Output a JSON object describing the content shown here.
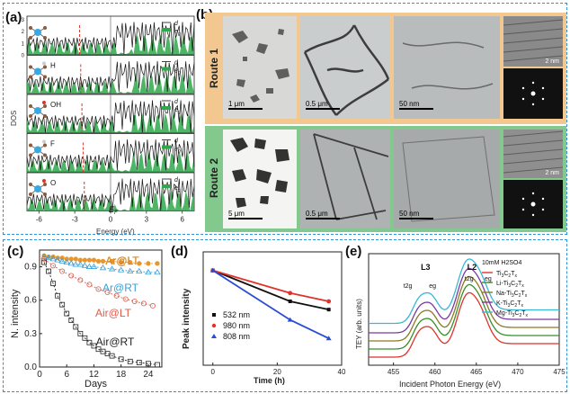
{
  "panel_a": {
    "label": "(a)",
    "y_label": "DOS",
    "x_label": "Energy (eV)",
    "x_ticks": [
      "-6",
      "-3",
      "0",
      "3",
      "6"
    ],
    "y_ticks": [
      "0",
      "1",
      "2",
      "3"
    ],
    "fermi_label": "E",
    "fermi_sub": "F",
    "rows": [
      {
        "group": "",
        "legend_d": "d",
        "legend_eg": "e",
        "legend_eg_sub": "g"
      },
      {
        "group": "H",
        "legend_d": "d",
        "legend_eg": "e",
        "legend_eg_sub": "g"
      },
      {
        "group": "OH",
        "legend_d": "d",
        "legend_eg": "e",
        "legend_eg_sub": "g"
      },
      {
        "group": "F",
        "legend_d": "d",
        "legend_eg": "e",
        "legend_eg_sub": "g"
      },
      {
        "group": "O",
        "legend_d": "d",
        "legend_eg": "e",
        "legend_eg_sub": "g"
      }
    ]
  },
  "panel_b": {
    "label": "(b)",
    "route1": "Route 1",
    "route2": "Route 2",
    "scale_r1": [
      "1 μm",
      "0.5 μm",
      "50 nm",
      "2 nm"
    ],
    "scale_r2": [
      "5 μm",
      "0.5 μm",
      "50 nm",
      "2 nm"
    ]
  },
  "chart_data": [
    {
      "type": "scatter",
      "panel": "(c)",
      "xlabel": "Days",
      "ylabel": "N. intensity",
      "xlim": [
        0,
        27
      ],
      "ylim": [
        0.0,
        1.05
      ],
      "x_ticks": [
        0,
        6,
        12,
        18,
        24
      ],
      "y_ticks": [
        0.0,
        0.3,
        0.6,
        0.9
      ],
      "series": [
        {
          "name": "Ar@LT",
          "color": "#e8962c",
          "x": [
            1,
            2,
            3,
            4,
            5,
            6,
            7,
            8,
            9,
            10,
            11,
            12,
            13,
            14,
            16,
            18,
            20,
            22,
            24,
            26
          ],
          "y": [
            1.0,
            0.99,
            0.99,
            0.98,
            0.98,
            0.97,
            0.97,
            0.97,
            0.96,
            0.96,
            0.96,
            0.96,
            0.95,
            0.95,
            0.95,
            0.94,
            0.94,
            0.93,
            0.93,
            0.93
          ]
        },
        {
          "name": "Ar@RT",
          "color": "#3aa0d8",
          "x": [
            1,
            2,
            3,
            4,
            5,
            6,
            7,
            8,
            9,
            10,
            11,
            12,
            14,
            16,
            18,
            20,
            22,
            24,
            26
          ],
          "y": [
            0.99,
            0.98,
            0.97,
            0.96,
            0.95,
            0.94,
            0.93,
            0.92,
            0.92,
            0.91,
            0.9,
            0.9,
            0.89,
            0.88,
            0.87,
            0.86,
            0.86,
            0.85,
            0.85
          ]
        },
        {
          "name": "Air@LT",
          "color": "#e05a4a",
          "x": [
            1,
            3,
            5,
            7,
            9,
            11,
            13,
            15,
            17,
            19,
            21,
            23,
            25
          ],
          "y": [
            0.97,
            0.91,
            0.86,
            0.82,
            0.78,
            0.74,
            0.7,
            0.67,
            0.64,
            0.61,
            0.59,
            0.57,
            0.55
          ]
        },
        {
          "name": "Air@RT",
          "color": "#222222",
          "x": [
            1,
            2,
            3,
            4,
            5,
            6,
            7,
            8,
            9,
            10,
            11,
            12,
            13,
            14,
            15,
            16,
            18,
            20,
            22,
            24,
            26
          ],
          "y": [
            0.94,
            0.86,
            0.75,
            0.64,
            0.56,
            0.48,
            0.42,
            0.36,
            0.3,
            0.26,
            0.22,
            0.19,
            0.16,
            0.14,
            0.12,
            0.1,
            0.07,
            0.05,
            0.04,
            0.03,
            0.02
          ]
        }
      ]
    },
    {
      "type": "line",
      "panel": "(d)",
      "xlabel": "Time (h)",
      "ylabel": "Peak intensity",
      "xlim": [
        -3,
        40
      ],
      "ylim": [
        0.45,
        1.0
      ],
      "x_ticks": [
        0,
        20,
        40
      ],
      "y_ticks": [],
      "series": [
        {
          "name": "532 nm",
          "color": "#111111",
          "marker": "square",
          "x": [
            0,
            24,
            36
          ],
          "y": [
            0.91,
            0.76,
            0.72
          ]
        },
        {
          "name": "980 nm",
          "color": "#e0322a",
          "marker": "circle",
          "x": [
            0,
            24,
            36
          ],
          "y": [
            0.91,
            0.8,
            0.76
          ]
        },
        {
          "name": "808 nm",
          "color": "#2a4bd8",
          "marker": "triangle",
          "x": [
            0,
            24,
            36
          ],
          "y": [
            0.91,
            0.67,
            0.58
          ]
        }
      ]
    },
    {
      "type": "line",
      "panel": "(e)",
      "xlabel": "Incident Photon Energy (eV)",
      "ylabel": "TEY (arb. units)",
      "xlim": [
        452,
        475
      ],
      "x_ticks": [
        455,
        460,
        465,
        470,
        475
      ],
      "legend_title": "10mM H2SO4",
      "annotations": [
        "L3",
        "L2",
        "t2g",
        "eg",
        "t2g",
        "eg"
      ],
      "series": [
        {
          "name": "Ti3C2Tx",
          "color": "#e0322a",
          "offset": 0.0
        },
        {
          "name": "Li-Ti3C2Tx",
          "color": "#3a8d2a",
          "offset": 0.12
        },
        {
          "name": "Na-Ti3C2Tx",
          "color": "#8a7a20",
          "offset": 0.24
        },
        {
          "name": "K-Ti3C2Tx",
          "color": "#7a3aa0",
          "offset": 0.36
        },
        {
          "name": "Mg-Ti3C2Tx",
          "color": "#35b8d8",
          "offset": 0.5
        }
      ]
    }
  ],
  "panel_e_legend_labels": [
    {
      "pre": "Ti",
      "s1": "3",
      "mid": "C",
      "s2": "2",
      "post": "T",
      "s3": "x"
    },
    {
      "pre": "Li-Ti",
      "s1": "3",
      "mid": "C",
      "s2": "2",
      "post": "T",
      "s3": "x"
    },
    {
      "pre": "Na-Ti",
      "s1": "3",
      "mid": "C",
      "s2": "2",
      "post": "T",
      "s3": "x"
    },
    {
      "pre": "K-Ti",
      "s1": "3",
      "mid": "C",
      "s2": "2",
      "post": "T",
      "s3": "x"
    },
    {
      "pre": "Mg-Ti",
      "s1": "3",
      "mid": "C",
      "s2": "2",
      "post": "T",
      "s3": "x"
    }
  ]
}
